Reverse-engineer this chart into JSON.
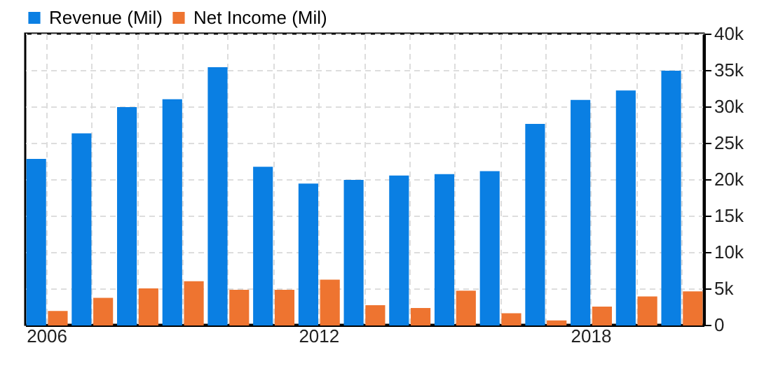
{
  "chart_data": {
    "type": "bar",
    "categories": [
      "2006",
      null,
      null,
      null,
      null,
      null,
      "2012",
      null,
      null,
      null,
      null,
      null,
      "2018",
      null,
      null
    ],
    "series": [
      {
        "name": "Revenue (Mil)",
        "color": "#0a7fe3",
        "values": [
          22700,
          26200,
          29800,
          30900,
          35300,
          21600,
          19300,
          19800,
          20400,
          20600,
          21000,
          27500,
          30800,
          32100,
          34800
        ]
      },
      {
        "name": "Net Income (Mil)",
        "color": "#ee7430",
        "values": [
          1800,
          3600,
          4900,
          5900,
          4700,
          4700,
          6100,
          2600,
          2200,
          4600,
          1500,
          500,
          2400,
          3800,
          4500
        ]
      }
    ],
    "ylim": [
      0,
      40000
    ],
    "yticks": [
      0,
      {
        "value": 5000,
        "label": "5k"
      },
      {
        "value": 10000,
        "label": "10k"
      },
      {
        "value": 15000,
        "label": "15k"
      },
      {
        "value": 20000,
        "label": "20k"
      },
      {
        "value": 25000,
        "label": "25k"
      },
      {
        "value": 30000,
        "label": "30k"
      },
      {
        "value": 35000,
        "label": "35k"
      },
      {
        "value": 40000,
        "label": "40k"
      }
    ],
    "grid": true,
    "legend": "top left"
  }
}
